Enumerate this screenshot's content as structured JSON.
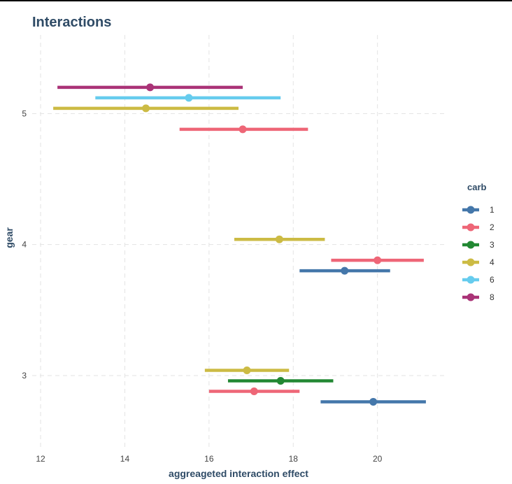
{
  "chart_data": {
    "type": "pointrange",
    "title": "Interactions",
    "xlabel": "aggreageted interaction effect",
    "ylabel": "gear",
    "xlim": [
      11.8,
      21.6
    ],
    "ylim": [
      2.45,
      5.6
    ],
    "x_ticks": [
      12,
      14,
      16,
      18,
      20
    ],
    "y_ticks": [
      3,
      4,
      5
    ],
    "grid": true,
    "legend": {
      "title": "carb",
      "position": "right",
      "entries": [
        "1",
        "2",
        "3",
        "4",
        "6",
        "8"
      ]
    },
    "colors": {
      "1": "#4477aa",
      "2": "#ee6677",
      "3": "#228833",
      "4": "#ccbb44",
      "6": "#66ccee",
      "8": "#aa3377"
    },
    "series": [
      {
        "name": "1",
        "points": [
          {
            "gear": 3,
            "offset": -0.2,
            "lo": 18.65,
            "est": 19.9,
            "hi": 21.15
          },
          {
            "gear": 4,
            "offset": -0.2,
            "lo": 18.15,
            "est": 19.22,
            "hi": 20.3
          }
        ]
      },
      {
        "name": "2",
        "points": [
          {
            "gear": 3,
            "offset": -0.12,
            "lo": 16.0,
            "est": 17.07,
            "hi": 18.15
          },
          {
            "gear": 4,
            "offset": -0.12,
            "lo": 18.9,
            "est": 20.0,
            "hi": 21.1
          },
          {
            "gear": 5,
            "offset": -0.12,
            "lo": 15.3,
            "est": 16.8,
            "hi": 18.35
          }
        ]
      },
      {
        "name": "3",
        "points": [
          {
            "gear": 3,
            "offset": -0.04,
            "lo": 16.45,
            "est": 17.7,
            "hi": 18.95
          }
        ]
      },
      {
        "name": "4",
        "points": [
          {
            "gear": 3,
            "offset": 0.04,
            "lo": 15.9,
            "est": 16.9,
            "hi": 17.9
          },
          {
            "gear": 4,
            "offset": 0.04,
            "lo": 16.6,
            "est": 17.67,
            "hi": 18.75
          },
          {
            "gear": 5,
            "offset": 0.04,
            "lo": 12.3,
            "est": 14.5,
            "hi": 16.7
          }
        ]
      },
      {
        "name": "6",
        "points": [
          {
            "gear": 5,
            "offset": 0.12,
            "lo": 13.3,
            "est": 15.52,
            "hi": 17.7
          }
        ]
      },
      {
        "name": "8",
        "points": [
          {
            "gear": 5,
            "offset": 0.2,
            "lo": 12.4,
            "est": 14.6,
            "hi": 16.8
          }
        ]
      }
    ]
  }
}
